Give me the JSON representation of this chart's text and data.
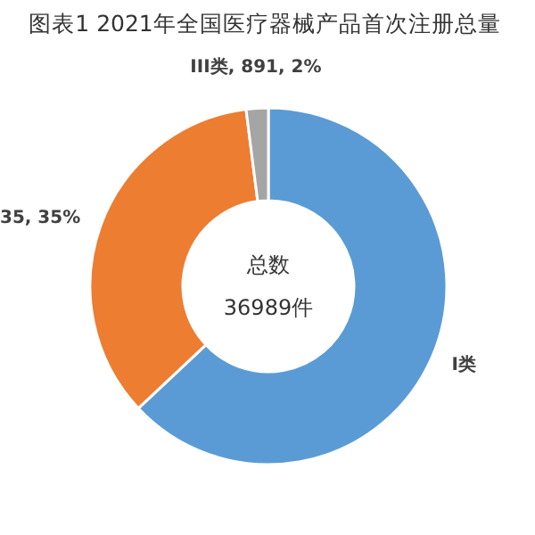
{
  "chart_data": {
    "type": "donut",
    "title": "图表1  2021年全国医疗器械产品首次注册总量",
    "categories": [
      "I类",
      null,
      "III类"
    ],
    "values": [
      63,
      35,
      2
    ],
    "value_labels": [
      null,
      "35, 35%",
      "891, 2%"
    ],
    "colors": [
      "#5b9bd5",
      "#ed7d31",
      "#a5a5a5"
    ],
    "annotations": [
      "总数",
      "36989件"
    ]
  }
}
